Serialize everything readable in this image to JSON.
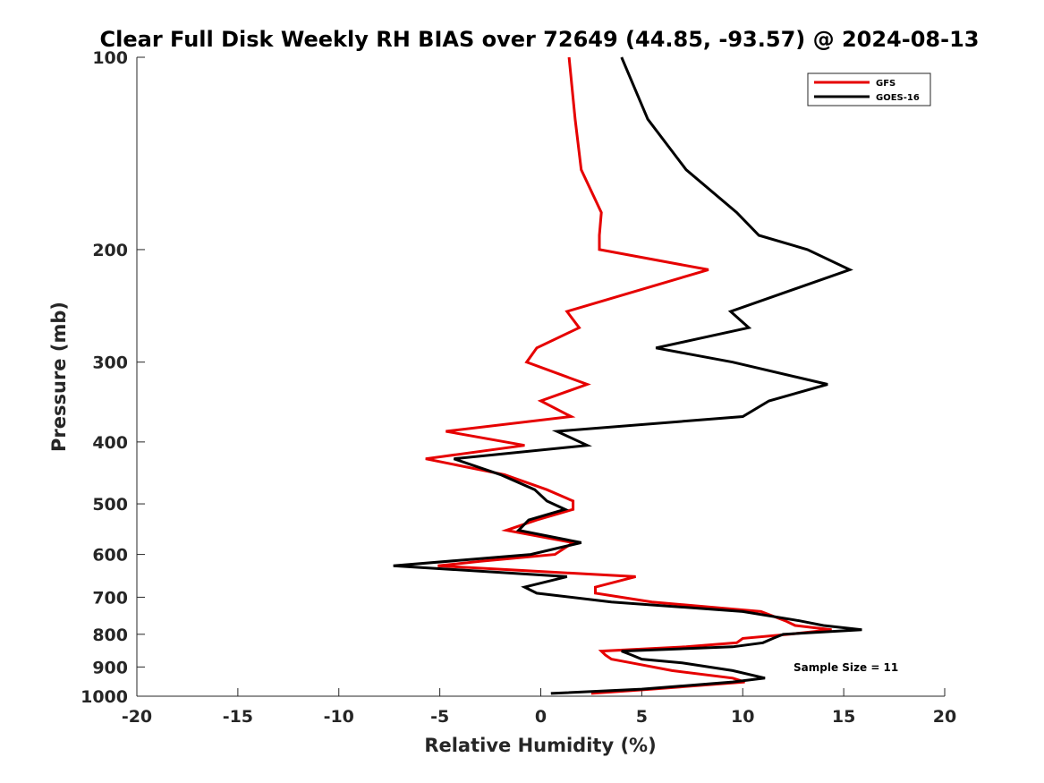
{
  "chart_data": {
    "type": "line",
    "title": "Clear Full Disk Weekly RH BIAS over 72649 (44.85, -93.57) @ 2024-08-13",
    "xlabel": "Relative Humidity (%)",
    "ylabel": "Pressure (mb)",
    "xlim": [
      -20,
      20
    ],
    "ylim": [
      1000,
      100
    ],
    "y_scale": "log",
    "y_reversed": true,
    "grid": false,
    "legend_position": "top-right",
    "x_ticks": [
      -20,
      -15,
      -10,
      -5,
      0,
      5,
      10,
      15,
      20
    ],
    "x_tick_labels": [
      "-20",
      "-15",
      "-10",
      "-5",
      "0",
      "5",
      "10",
      "15",
      "20"
    ],
    "y_ticks": [
      100,
      200,
      300,
      400,
      500,
      600,
      700,
      800,
      900,
      1000
    ],
    "y_tick_labels": [
      "100",
      "200",
      "300",
      "400",
      "500",
      "600",
      "700",
      "800",
      "900",
      "1000"
    ],
    "annotation": "Sample Size = 11",
    "series": [
      {
        "name": "GFS",
        "color": "#e60000",
        "points": [
          [
            1.4,
            100
          ],
          [
            1.7,
            125
          ],
          [
            2.0,
            150
          ],
          [
            3.0,
            175
          ],
          [
            2.9,
            190
          ],
          [
            2.9,
            200
          ],
          [
            8.3,
            215
          ],
          [
            1.3,
            250
          ],
          [
            1.9,
            265
          ],
          [
            -0.2,
            285
          ],
          [
            -0.7,
            300
          ],
          [
            2.3,
            325
          ],
          [
            0.0,
            345
          ],
          [
            1.5,
            365
          ],
          [
            -4.7,
            385
          ],
          [
            -0.8,
            405
          ],
          [
            -5.7,
            425
          ],
          [
            -1.8,
            450
          ],
          [
            0.3,
            475
          ],
          [
            1.6,
            495
          ],
          [
            1.6,
            510
          ],
          [
            -0.2,
            530
          ],
          [
            -1.7,
            550
          ],
          [
            1.6,
            575
          ],
          [
            0.7,
            600
          ],
          [
            -3.0,
            615
          ],
          [
            -5.1,
            625
          ],
          [
            4.7,
            650
          ],
          [
            2.7,
            675
          ],
          [
            2.7,
            690
          ],
          [
            5.5,
            712
          ],
          [
            10.9,
            737
          ],
          [
            12.1,
            762
          ],
          [
            12.6,
            775
          ],
          [
            14.4,
            787
          ],
          [
            12.3,
            800
          ],
          [
            10.0,
            812
          ],
          [
            9.7,
            825
          ],
          [
            7.2,
            837
          ],
          [
            3.0,
            850
          ],
          [
            3.2,
            862
          ],
          [
            3.5,
            875
          ],
          [
            4.5,
            887
          ],
          [
            6.5,
            912
          ],
          [
            9.5,
            937
          ],
          [
            10.1,
            950
          ],
          [
            5.5,
            975
          ],
          [
            2.5,
            990
          ]
        ]
      },
      {
        "name": "GOES-16",
        "color": "#000000",
        "points": [
          [
            4.0,
            100
          ],
          [
            5.3,
            125
          ],
          [
            7.2,
            150
          ],
          [
            9.7,
            175
          ],
          [
            10.8,
            190
          ],
          [
            13.2,
            200
          ],
          [
            15.3,
            215
          ],
          [
            9.4,
            250
          ],
          [
            10.3,
            265
          ],
          [
            5.7,
            285
          ],
          [
            9.5,
            300
          ],
          [
            14.2,
            325
          ],
          [
            11.3,
            345
          ],
          [
            10.0,
            365
          ],
          [
            0.8,
            385
          ],
          [
            2.3,
            405
          ],
          [
            -4.3,
            425
          ],
          [
            -2.0,
            450
          ],
          [
            -0.3,
            475
          ],
          [
            0.3,
            495
          ],
          [
            1.2,
            510
          ],
          [
            -0.6,
            530
          ],
          [
            -1.1,
            550
          ],
          [
            2.0,
            575
          ],
          [
            -0.5,
            600
          ],
          [
            -7.3,
            625
          ],
          [
            1.3,
            650
          ],
          [
            -0.8,
            675
          ],
          [
            -0.2,
            690
          ],
          [
            3.5,
            712
          ],
          [
            10.0,
            737
          ],
          [
            12.8,
            762
          ],
          [
            14.0,
            775
          ],
          [
            15.9,
            787
          ],
          [
            12.0,
            800
          ],
          [
            11.5,
            812
          ],
          [
            11.0,
            825
          ],
          [
            9.5,
            837
          ],
          [
            4.0,
            850
          ],
          [
            4.5,
            862
          ],
          [
            5.0,
            875
          ],
          [
            7.0,
            887
          ],
          [
            9.5,
            912
          ],
          [
            11.1,
            937
          ],
          [
            9.5,
            950
          ],
          [
            5.0,
            975
          ],
          [
            0.5,
            990
          ]
        ]
      }
    ]
  }
}
